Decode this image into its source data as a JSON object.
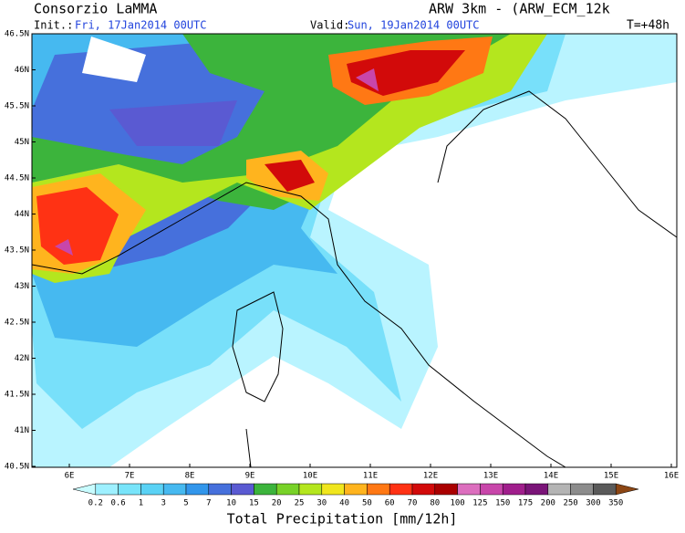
{
  "header": {
    "institution": "Consorzio LaMMA",
    "init_label": "Init.:",
    "init_date": "Fri, 17Jan2014 00UTC",
    "valid_label": "Valid:",
    "valid_date": "Sun, 19Jan2014 00UTC",
    "model": "ARW 3km - (ARW_ECM_12k",
    "lead": "T=+48h"
  },
  "map": {
    "lat_labels": [
      "46.5N",
      "46N",
      "45.5N",
      "45N",
      "44.5N",
      "44N",
      "43.5N",
      "43N",
      "42.5N",
      "42N",
      "41.5N",
      "41N",
      "40.5N"
    ],
    "lon_labels": [
      "6E",
      "7E",
      "8E",
      "9E",
      "10E",
      "11E",
      "12E",
      "13E",
      "14E",
      "15E",
      "16E"
    ]
  },
  "legend": {
    "title": "Total Precipitation [mm/12h]",
    "labels": [
      "0.2",
      "0.6",
      "1",
      "3",
      "5",
      "7",
      "10",
      "15",
      "20",
      "25",
      "30",
      "40",
      "50",
      "60",
      "70",
      "80",
      "100",
      "125",
      "150",
      "175",
      "200",
      "250",
      "300",
      "350"
    ],
    "colors": [
      "#c8fcff",
      "#9ef0ff",
      "#78e4fa",
      "#5ad2f5",
      "#46b9f0",
      "#3296eb",
      "#4670dc",
      "#5a5ad2",
      "#3cb43c",
      "#78d228",
      "#b4e61e",
      "#f0e61e",
      "#ffb41e",
      "#ff7814",
      "#ff3214",
      "#d20a0a",
      "#aa0000",
      "#dc6ebe",
      "#c846aa",
      "#a01e8c",
      "#7a1478",
      "#b4b4b4",
      "#8c8c8c",
      "#5a5a5a",
      "#8c4614"
    ]
  }
}
